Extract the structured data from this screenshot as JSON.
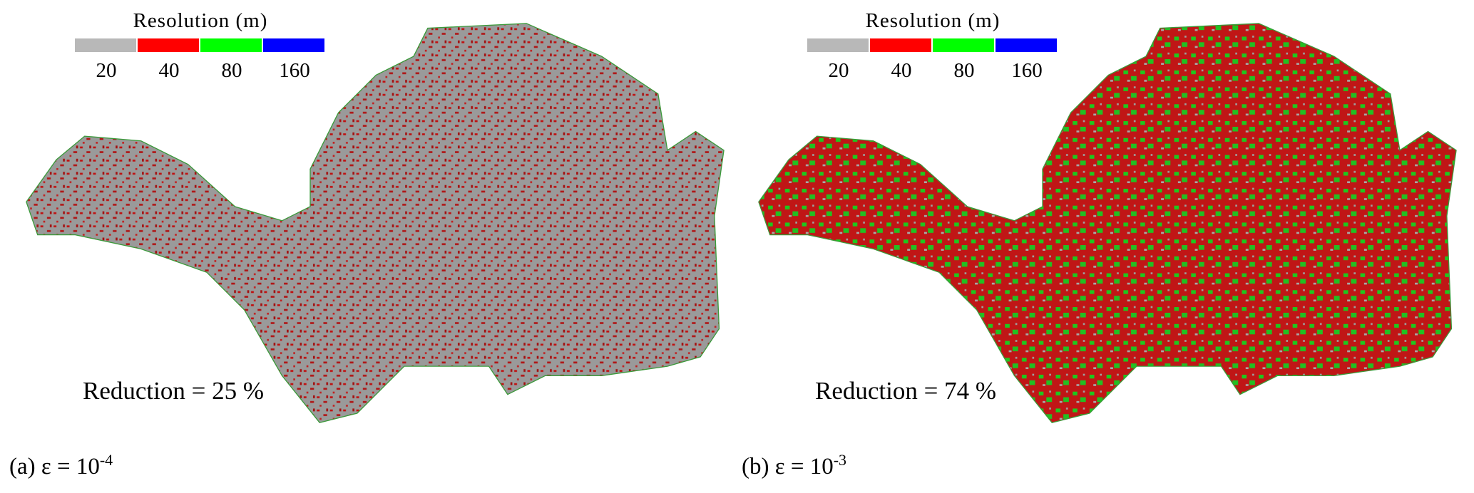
{
  "panels": [
    {
      "legend": {
        "title": "Resolution (m)",
        "items": [
          {
            "label": "20",
            "color": "#b8b8b8"
          },
          {
            "label": "40",
            "color": "#ff0000"
          },
          {
            "label": "80",
            "color": "#00ff00"
          },
          {
            "label": "160",
            "color": "#0000ff"
          }
        ]
      },
      "reduction": "Reduction = 25 %",
      "caption": {
        "prefix": "(a) ε = 10",
        "exponent": "-4"
      }
    },
    {
      "legend": {
        "title": "Resolution (m)",
        "items": [
          {
            "label": "20",
            "color": "#b8b8b8"
          },
          {
            "label": "40",
            "color": "#ff0000"
          },
          {
            "label": "80",
            "color": "#00ff00"
          },
          {
            "label": "160",
            "color": "#0000ff"
          }
        ]
      },
      "reduction": "Reduction = 74 %",
      "caption": {
        "prefix": "(b) ε = 10",
        "exponent": "-3"
      }
    }
  ]
}
